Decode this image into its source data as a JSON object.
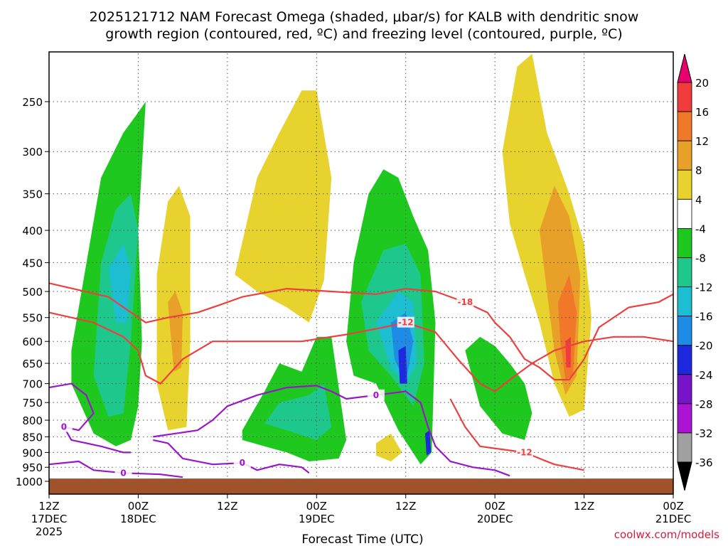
{
  "chart_data": {
    "type": "heatmap",
    "title_line1": "2025121712 NAM Forecast Omega (shaded, μbar/s) for KALB with dendritic snow",
    "title_line2": "growth region (contoured, red, ºC) and freezing level (contoured, purple, ºC)",
    "xlabel": "Forecast Time (UTC)",
    "ylabel": "",
    "credit": "coolwx.com/models",
    "x_ticks": [
      {
        "h": 0,
        "label": "12Z",
        "sub": "17DEC",
        "sub2": "2025"
      },
      {
        "h": 12,
        "label": "00Z",
        "sub": "18DEC",
        "sub2": ""
      },
      {
        "h": 24,
        "label": "12Z",
        "sub": "",
        "sub2": ""
      },
      {
        "h": 36,
        "label": "00Z",
        "sub": "19DEC",
        "sub2": ""
      },
      {
        "h": 48,
        "label": "12Z",
        "sub": "",
        "sub2": ""
      },
      {
        "h": 60,
        "label": "00Z",
        "sub": "20DEC",
        "sub2": ""
      },
      {
        "h": 72,
        "label": "12Z",
        "sub": "",
        "sub2": ""
      },
      {
        "h": 84,
        "label": "00Z",
        "sub": "21DEC",
        "sub2": ""
      }
    ],
    "xlim": [
      0,
      84
    ],
    "y_ticks": [
      250,
      300,
      350,
      400,
      450,
      500,
      550,
      600,
      650,
      700,
      750,
      800,
      850,
      900,
      950,
      1000
    ],
    "ylim_hpa": [
      200,
      1000
    ],
    "colorbar": {
      "labels": [
        "20",
        "16",
        "12",
        "8",
        "4",
        "-4",
        "-8",
        "-12",
        "-16",
        "-20",
        "-24",
        "-28",
        "-32",
        "-36"
      ],
      "colors": [
        "#e8006e",
        "#f03c3c",
        "#f07828",
        "#e8a028",
        "#e8d22d",
        "#ffffff",
        "#1ec81e",
        "#1ec88c",
        "#1ebed2",
        "#1e8ce6",
        "#1e28dc",
        "#7814c8",
        "#aa14d2",
        "#a0a0a0",
        "#000000"
      ]
    },
    "shading": [
      {
        "level": "-4",
        "color": "#1ec81e",
        "pts": [
          [
            3,
            620
          ],
          [
            7,
            330
          ],
          [
            10,
            280
          ],
          [
            12,
            260
          ],
          [
            13,
            250
          ],
          [
            12,
            400
          ],
          [
            12.5,
            600
          ],
          [
            12,
            760
          ],
          [
            11,
            860
          ],
          [
            9,
            880
          ],
          [
            6,
            840
          ],
          [
            3,
            700
          ]
        ]
      },
      {
        "level": "-8",
        "color": "#1ec88c",
        "pts": [
          [
            7,
            450
          ],
          [
            9,
            370
          ],
          [
            11,
            350
          ],
          [
            12,
            400
          ],
          [
            11,
            600
          ],
          [
            10,
            780
          ],
          [
            8,
            790
          ],
          [
            6,
            680
          ]
        ]
      },
      {
        "level": "-12",
        "color": "#1ebed2",
        "pts": [
          [
            8,
            460
          ],
          [
            10,
            420
          ],
          [
            11,
            460
          ],
          [
            10.5,
            560
          ],
          [
            9,
            560
          ]
        ]
      },
      {
        "level": "4",
        "color": "#e8d22d",
        "pts": [
          [
            14.5,
            470
          ],
          [
            16,
            360
          ],
          [
            17.5,
            340
          ],
          [
            19,
            380
          ],
          [
            19,
            600
          ],
          [
            18.5,
            820
          ],
          [
            16,
            830
          ],
          [
            14.5,
            700
          ]
        ]
      },
      {
        "level": "8",
        "color": "#e8a028",
        "pts": [
          [
            16,
            520
          ],
          [
            17,
            500
          ],
          [
            18,
            540
          ],
          [
            17.8,
            660
          ],
          [
            16.8,
            670
          ]
        ]
      },
      {
        "level": "4",
        "color": "#e8d22d",
        "pts": [
          [
            25,
            470
          ],
          [
            28,
            330
          ],
          [
            31,
            280
          ],
          [
            34,
            240
          ],
          [
            36,
            240
          ],
          [
            38,
            330
          ],
          [
            37,
            480
          ],
          [
            35,
            560
          ],
          [
            32,
            530
          ],
          [
            28,
            500
          ]
        ]
      },
      {
        "level": "-4",
        "color": "#1ec81e",
        "pts": [
          [
            26,
            830
          ],
          [
            29,
            720
          ],
          [
            31,
            650
          ],
          [
            34,
            670
          ],
          [
            36,
            590
          ],
          [
            38,
            590
          ],
          [
            40,
            860
          ],
          [
            39,
            920
          ],
          [
            35,
            930
          ],
          [
            32,
            900
          ],
          [
            29,
            880
          ],
          [
            26,
            860
          ]
        ]
      },
      {
        "level": "-8",
        "color": "#1ec88c",
        "pts": [
          [
            29,
            810
          ],
          [
            31,
            750
          ],
          [
            35,
            730
          ],
          [
            37,
            700
          ],
          [
            38,
            820
          ],
          [
            36,
            860
          ],
          [
            32,
            830
          ]
        ]
      },
      {
        "level": "-4",
        "color": "#1ec81e",
        "pts": [
          [
            40,
            600
          ],
          [
            41,
            450
          ],
          [
            43,
            350
          ],
          [
            45,
            320
          ],
          [
            47,
            330
          ],
          [
            49,
            380
          ],
          [
            51,
            430
          ],
          [
            52,
            560
          ],
          [
            51.5,
            900
          ],
          [
            50,
            940
          ],
          [
            47,
            830
          ],
          [
            44,
            700
          ],
          [
            41,
            680
          ]
        ]
      },
      {
        "level": "-8",
        "color": "#1ec88c",
        "pts": [
          [
            42,
            520
          ],
          [
            45,
            430
          ],
          [
            48,
            420
          ],
          [
            50,
            470
          ],
          [
            50.5,
            650
          ],
          [
            49,
            760
          ],
          [
            46,
            680
          ],
          [
            43,
            620
          ]
        ]
      },
      {
        "level": "-12",
        "color": "#1ebed2",
        "pts": [
          [
            44,
            560
          ],
          [
            47,
            500
          ],
          [
            49,
            520
          ],
          [
            49.5,
            650
          ],
          [
            48,
            700
          ],
          [
            46,
            660
          ]
        ]
      },
      {
        "level": "-16",
        "color": "#1e8ce6",
        "pts": [
          [
            46,
            560
          ],
          [
            48,
            540
          ],
          [
            49,
            600
          ],
          [
            48,
            700
          ],
          [
            46.5,
            640
          ]
        ]
      },
      {
        "level": "-20",
        "color": "#1e28dc",
        "pts": [
          [
            47,
            620
          ],
          [
            48,
            610
          ],
          [
            48.2,
            700
          ],
          [
            47.2,
            700
          ]
        ]
      },
      {
        "level": "-20",
        "color": "#1e28dc",
        "pts": [
          [
            50.6,
            840
          ],
          [
            51.2,
            830
          ],
          [
            51.4,
            900
          ],
          [
            50.8,
            910
          ]
        ]
      },
      {
        "level": "-4",
        "color": "#1ec81e",
        "pts": [
          [
            56,
            620
          ],
          [
            58,
            590
          ],
          [
            60,
            610
          ],
          [
            62,
            650
          ],
          [
            64,
            700
          ],
          [
            65,
            780
          ],
          [
            64,
            860
          ],
          [
            61,
            840
          ],
          [
            58,
            760
          ]
        ]
      },
      {
        "level": "4",
        "color": "#e8d22d",
        "pts": [
          [
            61,
            300
          ],
          [
            63,
            220
          ],
          [
            65,
            210
          ],
          [
            67,
            280
          ],
          [
            70,
            350
          ],
          [
            72,
            420
          ],
          [
            73,
            550
          ],
          [
            72,
            770
          ],
          [
            70,
            790
          ],
          [
            68,
            700
          ],
          [
            66,
            560
          ],
          [
            64,
            470
          ],
          [
            62,
            390
          ]
        ]
      },
      {
        "level": "8",
        "color": "#e8a028",
        "pts": [
          [
            66,
            400
          ],
          [
            68,
            340
          ],
          [
            70,
            380
          ],
          [
            71.5,
            470
          ],
          [
            71,
            680
          ],
          [
            69.5,
            730
          ],
          [
            68,
            620
          ],
          [
            67,
            500
          ]
        ]
      },
      {
        "level": "12",
        "color": "#f07828",
        "pts": [
          [
            68.5,
            520
          ],
          [
            70,
            470
          ],
          [
            71,
            540
          ],
          [
            70.5,
            680
          ],
          [
            69.5,
            690
          ],
          [
            68.8,
            600
          ]
        ]
      },
      {
        "level": "16",
        "color": "#f03c3c",
        "pts": [
          [
            69.5,
            600
          ],
          [
            70.2,
            590
          ],
          [
            70.2,
            660
          ],
          [
            69.6,
            660
          ]
        ]
      },
      {
        "level": "4",
        "color": "#e8d22d",
        "pts": [
          [
            44,
            870
          ],
          [
            46,
            840
          ],
          [
            47.5,
            900
          ],
          [
            46,
            930
          ],
          [
            44,
            910
          ]
        ]
      }
    ],
    "contours_dgz": [
      {
        "label": "-18",
        "pts": [
          [
            0,
            485
          ],
          [
            8,
            510
          ],
          [
            13,
            560
          ],
          [
            16,
            550
          ],
          [
            20,
            540
          ],
          [
            23,
            525
          ],
          [
            26,
            510
          ],
          [
            32,
            495
          ],
          [
            38,
            500
          ],
          [
            44,
            505
          ],
          [
            48,
            495
          ],
          [
            52,
            500
          ],
          [
            56,
            520
          ],
          [
            59,
            540
          ],
          [
            60,
            560
          ],
          [
            62,
            590
          ],
          [
            64,
            640
          ],
          [
            66,
            660
          ],
          [
            68,
            690
          ],
          [
            70,
            690
          ],
          [
            72,
            640
          ],
          [
            74,
            570
          ],
          [
            78,
            530
          ],
          [
            82,
            520
          ],
          [
            84,
            505
          ]
        ]
      },
      {
        "label": "-12",
        "pts": [
          [
            0,
            540
          ],
          [
            6,
            560
          ],
          [
            10,
            590
          ],
          [
            12,
            620
          ],
          [
            13,
            680
          ],
          [
            15,
            700
          ],
          [
            18,
            640
          ],
          [
            22,
            600
          ],
          [
            28,
            600
          ],
          [
            34,
            600
          ],
          [
            40,
            585
          ],
          [
            45,
            570
          ],
          [
            48,
            560
          ],
          [
            52,
            580
          ],
          [
            55,
            640
          ],
          [
            58,
            700
          ],
          [
            60,
            720
          ],
          [
            62,
            690
          ],
          [
            65,
            650
          ],
          [
            68,
            620
          ],
          [
            72,
            600
          ],
          [
            76,
            590
          ],
          [
            80,
            590
          ],
          [
            84,
            600
          ]
        ]
      },
      {
        "label": "-12",
        "pts": [
          [
            54,
            740
          ],
          [
            56,
            820
          ],
          [
            58,
            880
          ],
          [
            61,
            890
          ],
          [
            64,
            900
          ],
          [
            66,
            920
          ],
          [
            68,
            940
          ],
          [
            70,
            950
          ],
          [
            72,
            960
          ]
        ]
      }
    ],
    "contours_frz": [
      {
        "label": "0",
        "pts": [
          [
            0,
            710
          ],
          [
            3,
            700
          ],
          [
            5,
            730
          ],
          [
            6,
            780
          ],
          [
            4,
            830
          ],
          [
            2,
            820
          ],
          [
            3,
            860
          ],
          [
            7,
            880
          ],
          [
            10,
            900
          ],
          [
            11,
            900
          ]
        ]
      },
      {
        "label": "0",
        "pts": [
          [
            14,
            850
          ],
          [
            20,
            830
          ],
          [
            22,
            800
          ],
          [
            24,
            760
          ],
          [
            28,
            730
          ],
          [
            32,
            710
          ],
          [
            36,
            705
          ],
          [
            38,
            720
          ],
          [
            40,
            740
          ],
          [
            44,
            730
          ],
          [
            48,
            720
          ],
          [
            50,
            750
          ],
          [
            51,
            820
          ],
          [
            52,
            880
          ],
          [
            54,
            930
          ],
          [
            57,
            950
          ],
          [
            60,
            960
          ],
          [
            62,
            980
          ]
        ]
      },
      {
        "label": "0",
        "pts": [
          [
            0,
            940
          ],
          [
            4,
            930
          ],
          [
            6,
            960
          ],
          [
            10,
            970
          ],
          [
            15,
            975
          ],
          [
            18,
            985
          ]
        ]
      },
      {
        "label": "0",
        "pts": [
          [
            14,
            860
          ],
          [
            16,
            870
          ],
          [
            18,
            920
          ],
          [
            22,
            940
          ],
          [
            26,
            935
          ],
          [
            28,
            960
          ],
          [
            31,
            940
          ],
          [
            34,
            950
          ],
          [
            35,
            970
          ]
        ]
      }
    ],
    "terrain_top_hpa": 990
  }
}
